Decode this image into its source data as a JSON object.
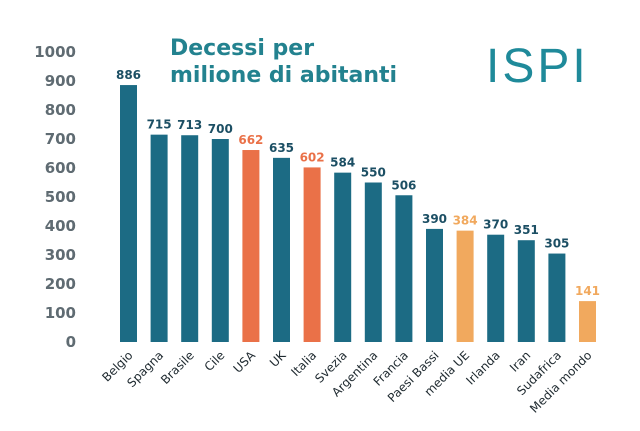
{
  "logo": {
    "text": "ISPI",
    "color": "#1f8a9a"
  },
  "colors": {
    "default": "#1c6b84",
    "highlight": "#ea7148",
    "light": "#f1a95e",
    "axis_text": "#5f6b72",
    "title": "#23828f",
    "label_default": "#1c4f64"
  },
  "chart_data": {
    "type": "bar",
    "title_lines": [
      "Decessi per",
      "milione di abitanti"
    ],
    "xlabel": "",
    "ylabel": "",
    "ylim": [
      0,
      1000
    ],
    "yticks": [
      0,
      100,
      200,
      300,
      400,
      500,
      600,
      700,
      800,
      900,
      1000
    ],
    "grid": false,
    "legend": "none",
    "categories": [
      "Belgio",
      "Spagna",
      "Brasile",
      "Cile",
      "USA",
      "UK",
      "Italia",
      "Svezia",
      "Argentina",
      "Francia",
      "Paesi Bassi",
      "media UE",
      "Irlanda",
      "Iran",
      "Sudafrica",
      "Media mondo"
    ],
    "values": [
      886,
      715,
      713,
      700,
      662,
      635,
      602,
      584,
      550,
      506,
      390,
      384,
      370,
      351,
      305,
      141
    ],
    "bar_color_keys": [
      "default",
      "default",
      "default",
      "default",
      "highlight",
      "default",
      "highlight",
      "default",
      "default",
      "default",
      "default",
      "light",
      "default",
      "default",
      "default",
      "light"
    ]
  }
}
